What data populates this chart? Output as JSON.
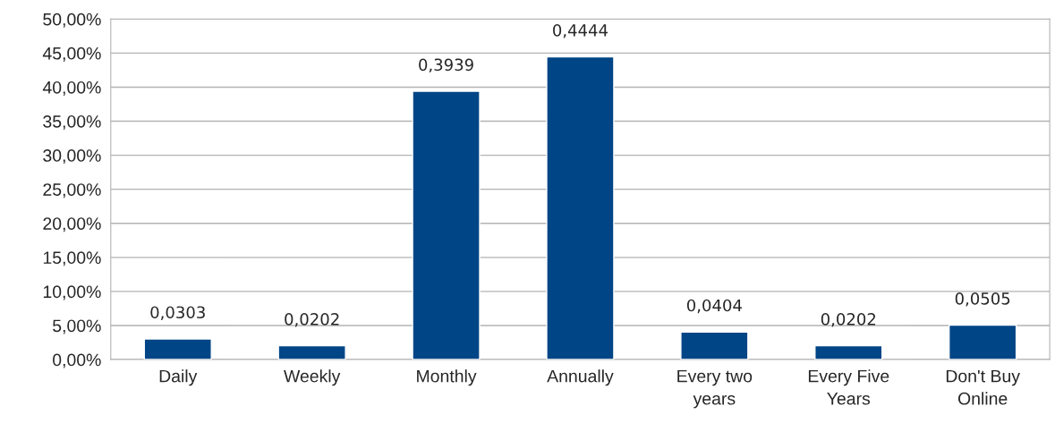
{
  "chart_data": {
    "type": "bar",
    "categories": [
      "Daily",
      "Weekly",
      "Monthly",
      "Annually",
      "Every two\nyears",
      "Every Five\nYears",
      "Don't Buy\nOnline"
    ],
    "values": [
      0.0303,
      0.0202,
      0.3939,
      0.4444,
      0.0404,
      0.0202,
      0.0505
    ],
    "value_labels": [
      "0,0303",
      "0,0202",
      "0,3939",
      "0,4444",
      "0,0404",
      "0,0202",
      "0,0505"
    ],
    "color": "#004586",
    "ylim": [
      0,
      0.5
    ],
    "yticks": [
      {
        "value": 0,
        "label": "0,00%"
      },
      {
        "value": 0.05,
        "label": "5,00%"
      },
      {
        "value": 0.1,
        "label": "10,00%"
      },
      {
        "value": 0.15,
        "label": "15,00%"
      },
      {
        "value": 0.2,
        "label": "20,00%"
      },
      {
        "value": 0.25,
        "label": "25,00%"
      },
      {
        "value": 0.3,
        "label": "30,00%"
      },
      {
        "value": 0.35,
        "label": "35,00%"
      },
      {
        "value": 0.4,
        "label": "40,00%"
      },
      {
        "value": 0.45,
        "label": "45,00%"
      },
      {
        "value": 0.5,
        "label": "50,00%"
      }
    ],
    "grid": "y",
    "legend": false
  }
}
